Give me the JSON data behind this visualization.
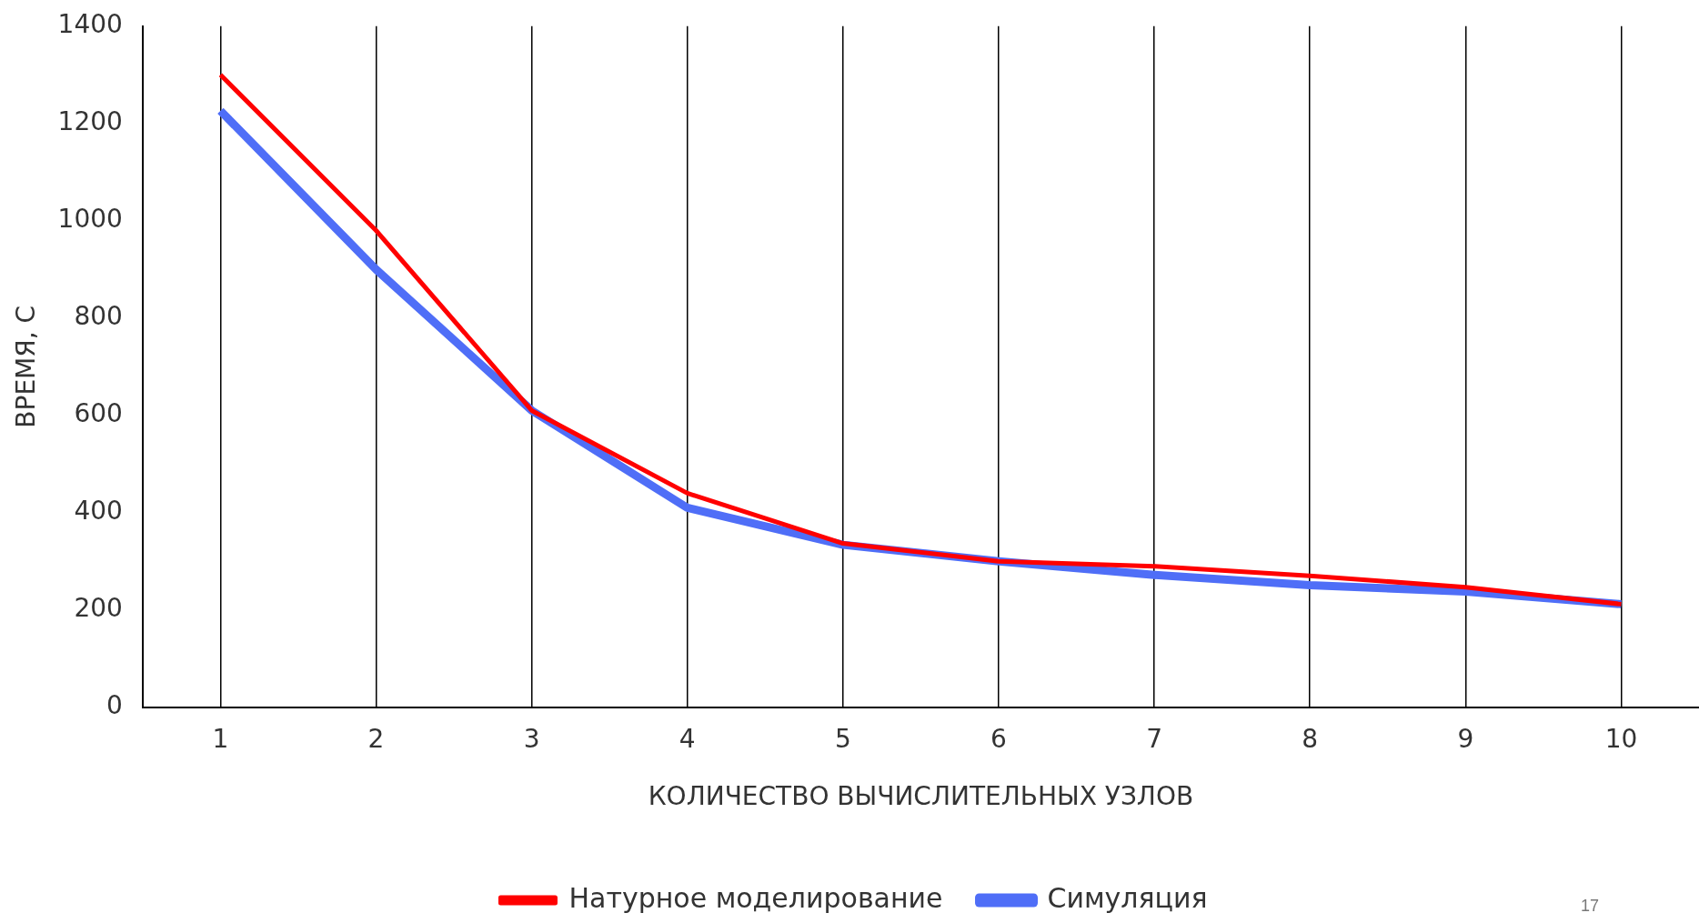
{
  "chart_data": {
    "type": "line",
    "xlabel": "КОЛИЧЕСТВО ВЫЧИСЛИТЕЛЬНЫХ УЗЛОВ",
    "ylabel": "ВРЕМЯ, С",
    "categories": [
      "1",
      "2",
      "3",
      "4",
      "5",
      "6",
      "7",
      "8",
      "9",
      "10"
    ],
    "series": [
      {
        "name": "Натурное моделирование",
        "color": "#ff0000",
        "values": [
          1300,
          980,
          610,
          440,
          337,
          300,
          290,
          270,
          247,
          212
        ]
      },
      {
        "name": "Симуляция",
        "color": "#4f6ef7",
        "values": [
          1226,
          900,
          610,
          410,
          334,
          300,
          272,
          251,
          238,
          212
        ]
      }
    ],
    "ylim": [
      0,
      1400
    ],
    "yticks": [
      0,
      200,
      400,
      600,
      800,
      1000,
      1200,
      1400
    ],
    "grid": "x",
    "legend": "bottom",
    "marker": "none",
    "line_style": "solid",
    "annotations": [
      "17"
    ]
  }
}
